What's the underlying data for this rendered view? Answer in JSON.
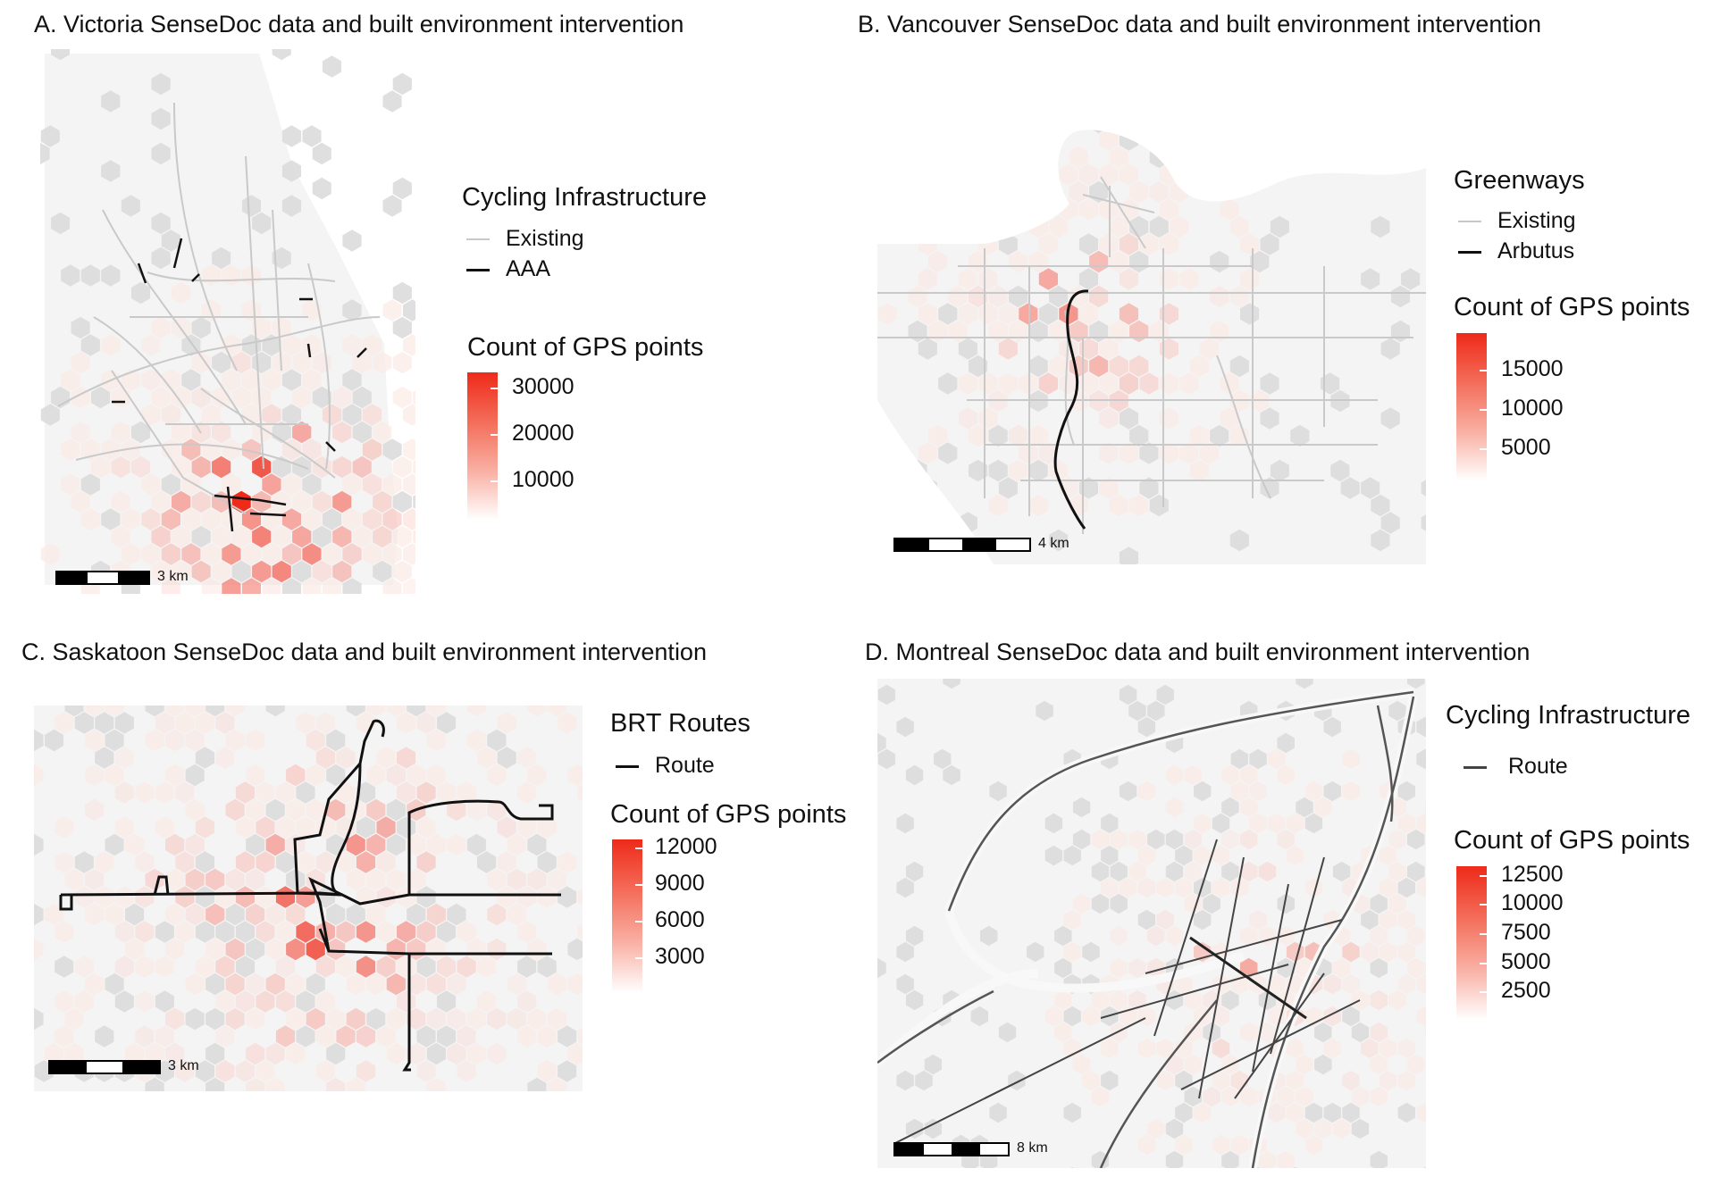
{
  "panels": {
    "a": {
      "title": "A. Victoria SenseDoc data and built environment intervention",
      "legend_title": "Cycling Infrastructure",
      "line_items": [
        {
          "label": "Existing",
          "color": "#c9c9c9"
        },
        {
          "label": "AAA",
          "color": "#111111"
        }
      ],
      "count_title": "Count of GPS points",
      "ticks": [
        "30000",
        "20000",
        "10000"
      ],
      "scale_label": "3 km"
    },
    "b": {
      "title": "B. Vancouver SenseDoc data and built environment intervention",
      "legend_title": "Greenways",
      "line_items": [
        {
          "label": "Existing",
          "color": "#c9c9c9"
        },
        {
          "label": "Arbutus",
          "color": "#111111"
        }
      ],
      "count_title": "Count of GPS points",
      "ticks": [
        "15000",
        "10000",
        "5000"
      ],
      "scale_label": "4 km"
    },
    "c": {
      "title": "C. Saskatoon SenseDoc data and built environment intervention",
      "legend_title": "BRT Routes",
      "line_items": [
        {
          "label": "Route",
          "color": "#111111"
        }
      ],
      "count_title": "Count of GPS points",
      "ticks": [
        "12000",
        "9000",
        "6000",
        "3000"
      ],
      "scale_label": "3 km"
    },
    "d": {
      "title": "D. Montreal SenseDoc data and built environment intervention",
      "legend_title": "Cycling Infrastructure",
      "line_items": [
        {
          "label": "Route",
          "color": "#444444"
        }
      ],
      "count_title": "Count of GPS points",
      "ticks": [
        "12500",
        "10000",
        "7500",
        "5000",
        "2500"
      ],
      "scale_label": "8 km"
    }
  },
  "colors": {
    "count_high": "#ee2a1a",
    "count_low": "#ffffff",
    "land": "#f4f4f4",
    "no_data": "#dcdcdc"
  }
}
